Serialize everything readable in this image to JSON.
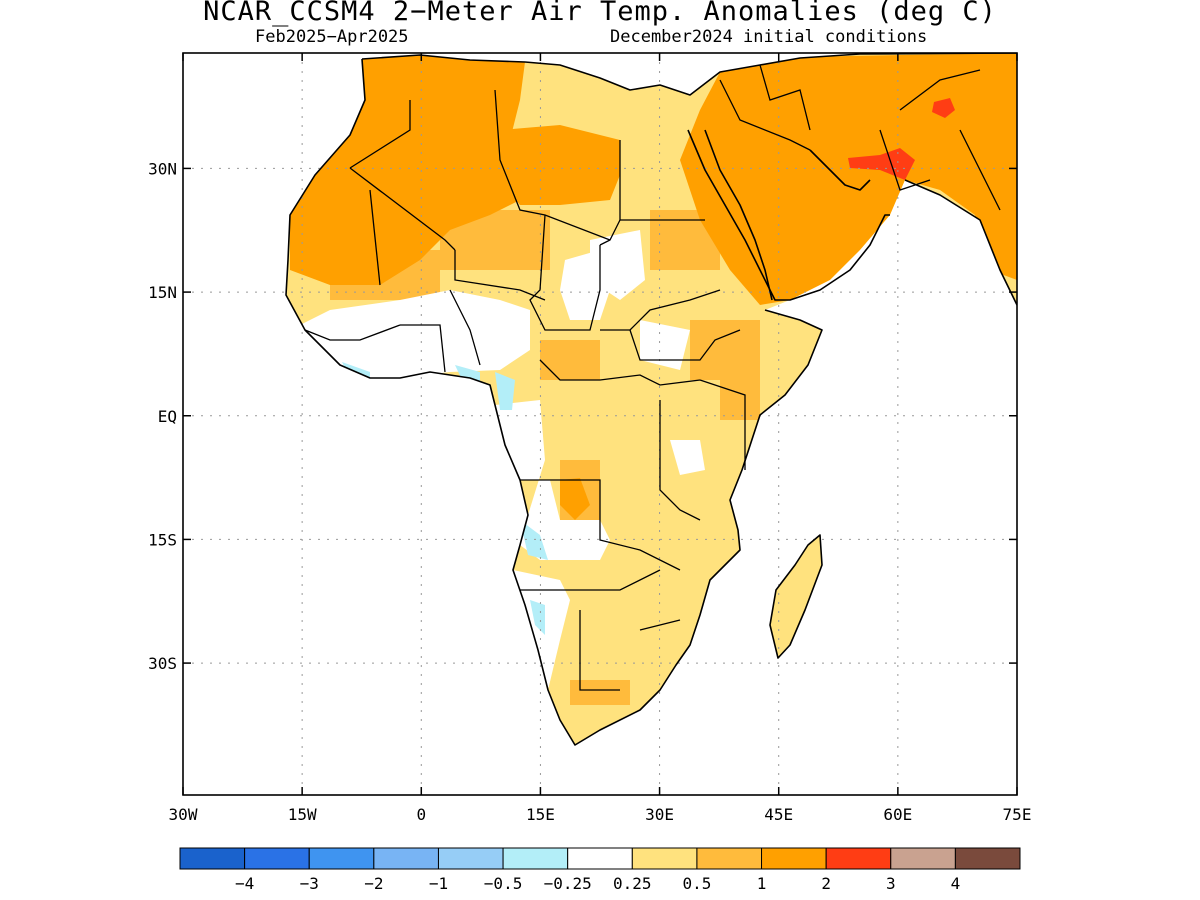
{
  "title": "NCAR_CCSM4 2−Meter Air Temp. Anomalies (deg C)",
  "subtitle_left": "Feb2025−Apr2025",
  "subtitle_right": "December2024 initial conditions",
  "map": {
    "projection": "lat-lon",
    "lon_range": [
      -30,
      75
    ],
    "lat_range": [
      -46,
      44
    ],
    "grid": "dotted",
    "lon_ticks": [
      "30W",
      "15W",
      "0",
      "15E",
      "30E",
      "45E",
      "60E",
      "75E"
    ],
    "lat_ticks": [
      "30N",
      "15N",
      "EQ",
      "15S",
      "30S"
    ]
  },
  "legend": {
    "colors": [
      "#1a62cc",
      "#2a72e6",
      "#3f94f0",
      "#78b4f4",
      "#96cdf6",
      "#b3eef8",
      "#ffffff",
      "#ffe27e",
      "#ffbb3c",
      "#ffa000",
      "#ff3d14",
      "#c9a290",
      "#7a4a3c"
    ],
    "labels": [
      "−4",
      "−3",
      "−2",
      "−1",
      "−0.5",
      "−0.25",
      "0.25",
      "0.5",
      "1",
      "2",
      "3",
      "4"
    ]
  }
}
